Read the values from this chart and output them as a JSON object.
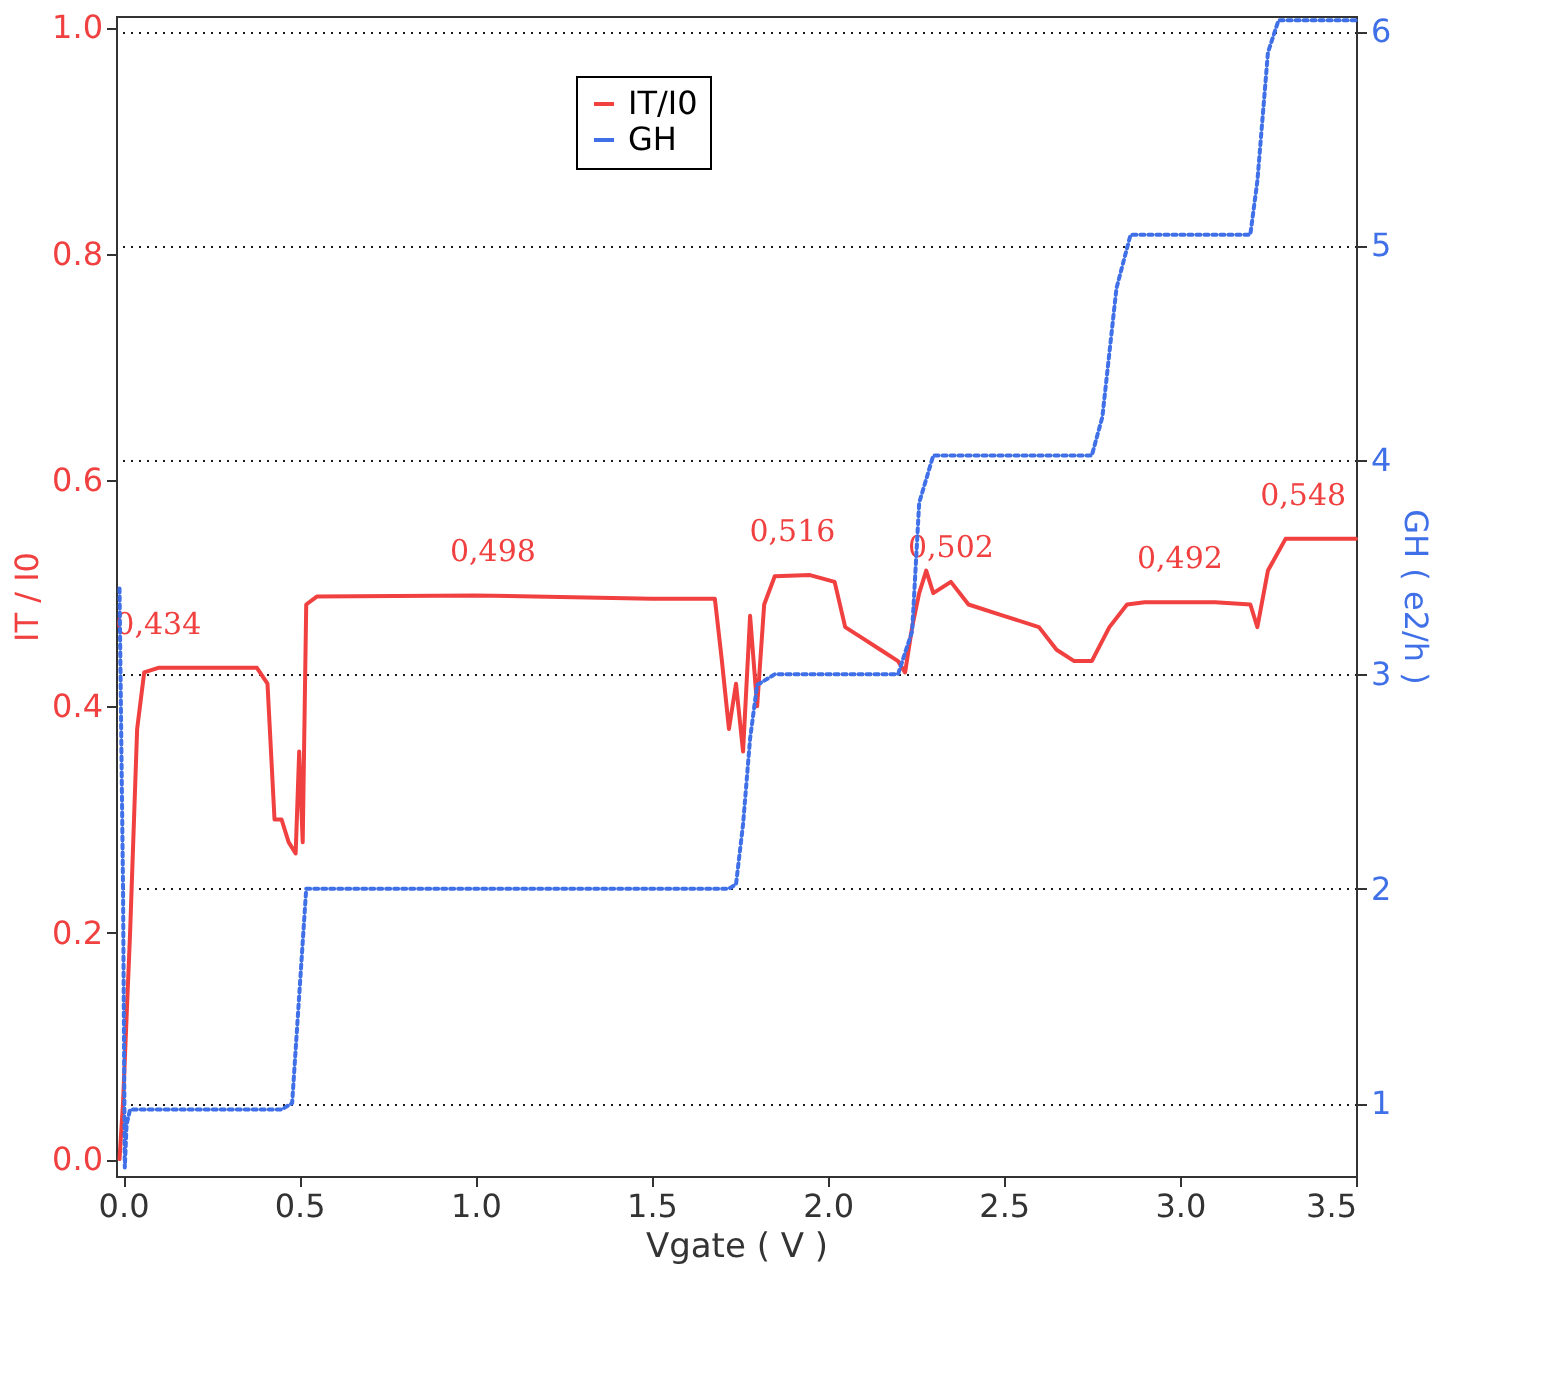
{
  "chart_data": {
    "type": "line",
    "xlabel": "Vgate ( V )",
    "ylabel": "IT / I0",
    "y2label": "GH ( e2/h )",
    "xlim": [
      -0.02,
      3.5
    ],
    "xticks": [
      {
        "value": 0,
        "label": "0.0"
      },
      0.5,
      {
        "value": 1,
        "label": "1.0"
      },
      1.5,
      {
        "value": 2,
        "label": "2.0"
      },
      2.5,
      {
        "value": 3,
        "label": "3.0"
      },
      3.5
    ],
    "ylim": [
      -0.015,
      1.01
    ],
    "yticks": [
      {
        "value": 0,
        "label": "0.0"
      },
      0.2,
      0.4,
      0.6,
      0.8,
      {
        "value": 1,
        "label": "1.0"
      }
    ],
    "y2lim": [
      0.66,
      6.07
    ],
    "y2ticks": [
      1,
      2,
      3,
      4,
      5,
      6
    ],
    "grid": "y2",
    "legend": "top",
    "series": [
      {
        "name": "IT/I0",
        "color": "#f04040",
        "line_style": "solid",
        "x": [
          -0.01,
          0.0,
          0.02,
          0.04,
          0.06,
          0.1,
          0.38,
          0.41,
          0.43,
          0.45,
          0.47,
          0.49,
          0.5,
          0.51,
          0.52,
          0.55,
          1.0,
          1.5,
          1.68,
          1.7,
          1.72,
          1.74,
          1.76,
          1.78,
          1.8,
          1.82,
          1.85,
          1.95,
          2.02,
          2.05,
          2.1,
          2.15,
          2.2,
          2.22,
          2.24,
          2.26,
          2.28,
          2.3,
          2.35,
          2.4,
          2.5,
          2.6,
          2.65,
          2.7,
          2.75,
          2.8,
          2.85,
          2.9,
          3.1,
          3.2,
          3.22,
          3.25,
          3.3,
          3.5
        ],
        "values": [
          0.0,
          0.05,
          0.2,
          0.38,
          0.43,
          0.434,
          0.434,
          0.42,
          0.3,
          0.3,
          0.28,
          0.27,
          0.36,
          0.28,
          0.49,
          0.497,
          0.498,
          0.495,
          0.495,
          0.44,
          0.38,
          0.42,
          0.36,
          0.48,
          0.4,
          0.49,
          0.515,
          0.516,
          0.51,
          0.47,
          0.46,
          0.45,
          0.44,
          0.43,
          0.47,
          0.5,
          0.52,
          0.5,
          0.51,
          0.49,
          0.48,
          0.47,
          0.45,
          0.44,
          0.44,
          0.47,
          0.49,
          0.492,
          0.492,
          0.49,
          0.47,
          0.52,
          0.548,
          0.548
        ]
      },
      {
        "name": "GH",
        "color": "#4070e8",
        "axis": "y2",
        "line_style": "dotted",
        "x": [
          -0.01,
          0.0,
          0.005,
          0.01,
          0.02,
          0.45,
          0.48,
          0.5,
          0.52,
          1.72,
          1.74,
          1.76,
          1.78,
          1.8,
          1.85,
          2.2,
          2.24,
          2.26,
          2.3,
          2.75,
          2.78,
          2.82,
          2.86,
          3.2,
          3.22,
          3.25,
          3.28,
          3.5
        ],
        "values": [
          3.4,
          2.0,
          0.7,
          0.9,
          0.97,
          0.97,
          1.0,
          1.5,
          2.0,
          2.0,
          2.02,
          2.3,
          2.7,
          2.95,
          3.0,
          3.0,
          3.2,
          3.8,
          4.02,
          4.02,
          4.2,
          4.8,
          5.05,
          5.05,
          5.3,
          5.9,
          6.05,
          6.05
        ]
      }
    ],
    "annotations": [
      {
        "text": "0,434",
        "x": 0.1,
        "y": 0.434
      },
      {
        "text": "0,498",
        "x": 1.05,
        "y": 0.498
      },
      {
        "text": "0,516",
        "x": 1.9,
        "y": 0.516
      },
      {
        "text": "0,502",
        "x": 2.35,
        "y": 0.502
      },
      {
        "text": "0,492",
        "x": 3.0,
        "y": 0.492
      },
      {
        "text": "0,548",
        "x": 3.35,
        "y": 0.548
      }
    ]
  }
}
